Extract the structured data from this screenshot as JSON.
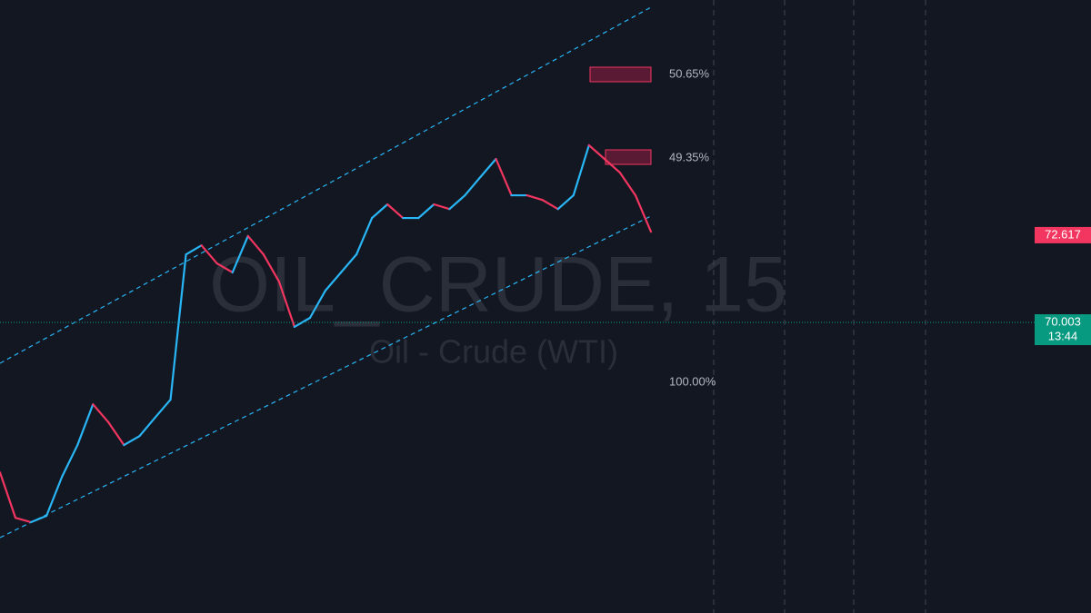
{
  "chart_data": {
    "type": "line",
    "watermark_symbol": "OIL_CRUDE, 15",
    "watermark_name": "Oil - Crude (WTI)",
    "fib_labels": [
      "50.65%",
      "49.35%",
      "100.00%"
    ],
    "values": [
      65.51,
      64.15,
      64.02,
      64.21,
      65.38,
      66.33,
      67.55,
      67.01,
      66.33,
      66.6,
      67.15,
      67.69,
      72.04,
      72.31,
      71.77,
      71.5,
      72.59,
      72.04,
      71.23,
      69.87,
      70.14,
      70.96,
      71.5,
      72.04,
      73.13,
      73.54,
      73.13,
      73.13,
      73.54,
      73.4,
      73.81,
      74.36,
      74.9,
      73.81,
      73.81,
      73.67,
      73.4,
      73.81,
      75.31,
      74.9,
      74.49,
      73.81,
      72.72
    ],
    "up_color": "#29b6f6",
    "down_color": "#f23660",
    "ylim": [
      61.3,
      79.66
    ],
    "price_labels": [
      {
        "value": 72.617,
        "label": "72.617",
        "color": "#f23660"
      },
      {
        "value": 70.003,
        "label": "70.003",
        "color": "#089981",
        "countdown": "13:44"
      }
    ]
  }
}
